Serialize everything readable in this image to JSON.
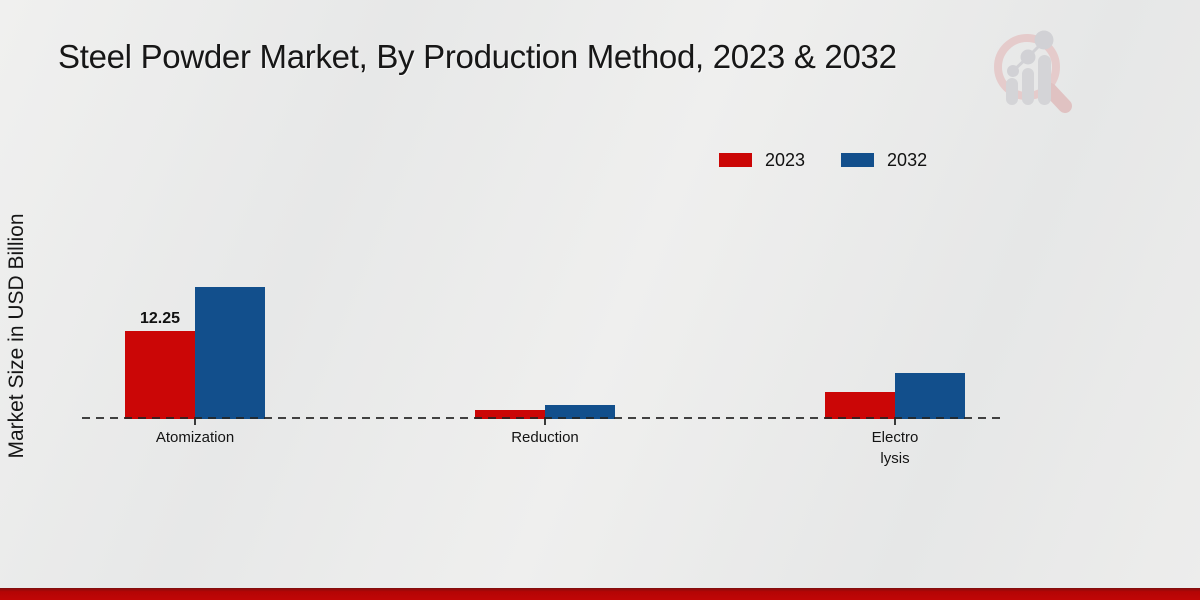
{
  "title": "Steel Powder Market, By Production Method, 2023 & 2032",
  "watermark": {
    "name": "market-research-magnifier-logo"
  },
  "legend": {
    "items": [
      "2023",
      "2032"
    ]
  },
  "chart_data": {
    "type": "bar",
    "title": "Steel Powder Market, By Production Method, 2023 & 2032",
    "xlabel": "",
    "ylabel": "Market Size in USD Billion",
    "categories": [
      "Atomization",
      "Reduction",
      "Electrolysis"
    ],
    "category_label_lines": [
      [
        "Atomization"
      ],
      [
        "Reduction"
      ],
      [
        "Electro",
        "lysis"
      ]
    ],
    "series": [
      {
        "name": "2023",
        "color": "#cb0606",
        "values": [
          12.25,
          1.2,
          3.8
        ]
      },
      {
        "name": "2032",
        "color": "#124f8c",
        "values": [
          18.4,
          1.9,
          6.4
        ]
      }
    ],
    "value_labels": [
      {
        "series_index": 0,
        "category_index": 0,
        "text": "12.25"
      }
    ],
    "ylim": [
      0,
      20
    ],
    "grid": false,
    "legend_position": "top-right",
    "baseline_style": "dashed",
    "accent_colors": {
      "red": "#cb0606",
      "blue": "#124f8c",
      "footer": "#c10606"
    }
  }
}
